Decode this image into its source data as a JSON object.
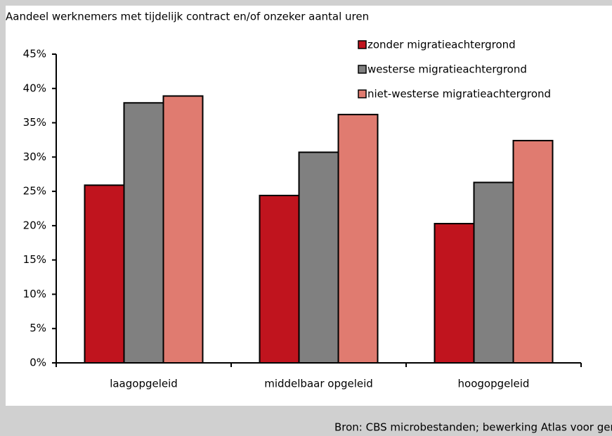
{
  "chart_data": {
    "type": "bar",
    "title": "Aandeel werknemers met tijdelijk contract en/of onzeker aantal uren",
    "source": "Bron: CBS microbestanden; bewerking Atlas voor gemeenten en SEO",
    "categories": [
      "laagopgeleid",
      "middelbaar opgeleid",
      "hoogopgeleid"
    ],
    "series": [
      {
        "name": "zonder migratieachtergrond",
        "color": "#c0141e",
        "values": [
          25.9,
          24.4,
          20.3
        ]
      },
      {
        "name": "westerse migratieachtergrond",
        "color": "#808080",
        "values": [
          37.9,
          30.7,
          26.3
        ]
      },
      {
        "name": "niet-westerse migratieachtergrond",
        "color": "#e07b70",
        "values": [
          38.9,
          36.2,
          32.4
        ]
      }
    ],
    "ylim": [
      0,
      45
    ],
    "yticks": [
      {
        "value": 0,
        "label": "0%"
      },
      {
        "value": 5,
        "label": "5%"
      },
      {
        "value": 10,
        "label": "10%"
      },
      {
        "value": 15,
        "label": "15%"
      },
      {
        "value": 20,
        "label": "20%"
      },
      {
        "value": 25,
        "label": "25%"
      },
      {
        "value": 30,
        "label": "30%"
      },
      {
        "value": 35,
        "label": "35%"
      },
      {
        "value": 40,
        "label": "40%"
      },
      {
        "value": 45,
        "label": "45%"
      }
    ],
    "grid": false,
    "legend": "top-right"
  }
}
